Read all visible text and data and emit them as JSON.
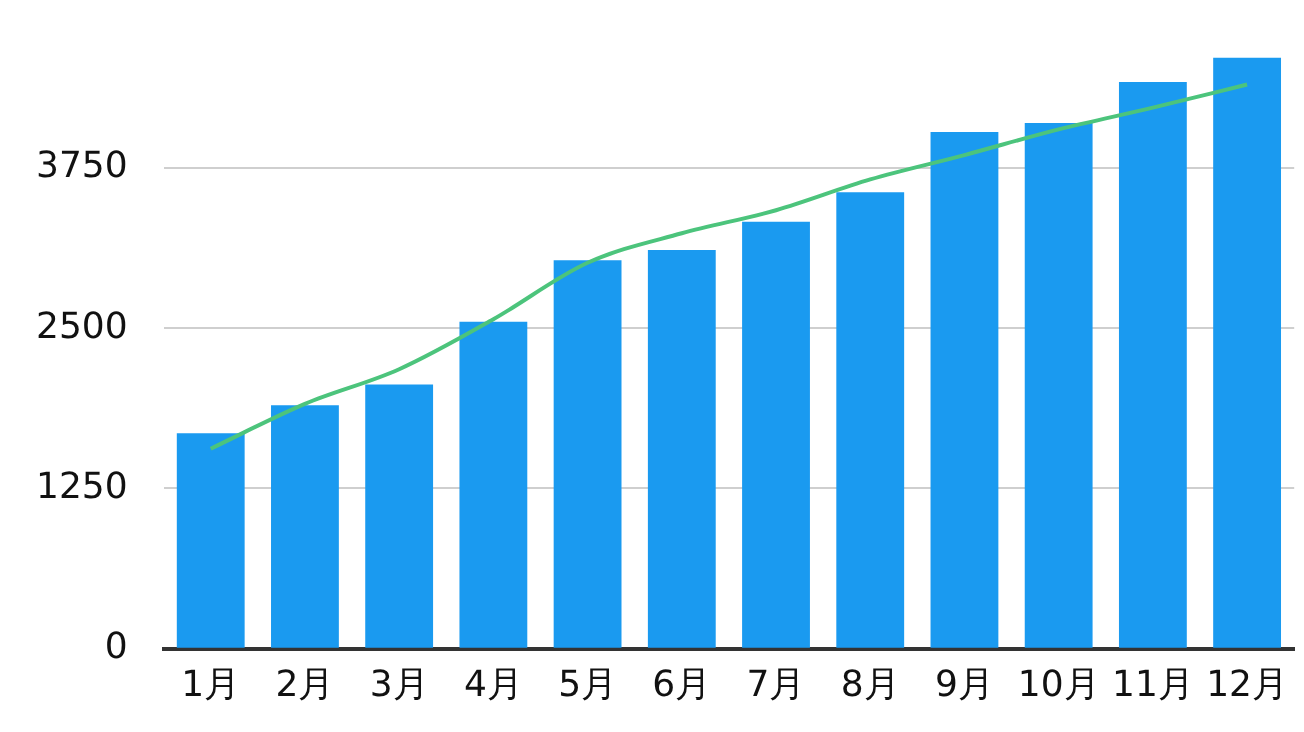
{
  "chart_data": {
    "type": "bar",
    "categories": [
      "1月",
      "2月",
      "3月",
      "4月",
      "5月",
      "6月",
      "7月",
      "8月",
      "9月",
      "10月",
      "11月",
      "12月"
    ],
    "series": [
      {
        "color": "#1a9af0",
        "values": [
          1680,
          1900,
          2060,
          2550,
          3030,
          3110,
          3330,
          3560,
          4030,
          4100,
          4420,
          4610
        ]
      },
      {
        "type": "line",
        "color": "#4cc47c",
        "values": [
          1560,
          1910,
          2180,
          2570,
          3010,
          3240,
          3420,
          3660,
          3850,
          4050,
          4220,
          4400
        ]
      }
    ],
    "ylim": [
      0,
      4610
    ],
    "yticks": [
      0,
      1250,
      2500,
      3750
    ],
    "grid": "y",
    "legend": false,
    "marker": "none",
    "line_style": "solid"
  }
}
